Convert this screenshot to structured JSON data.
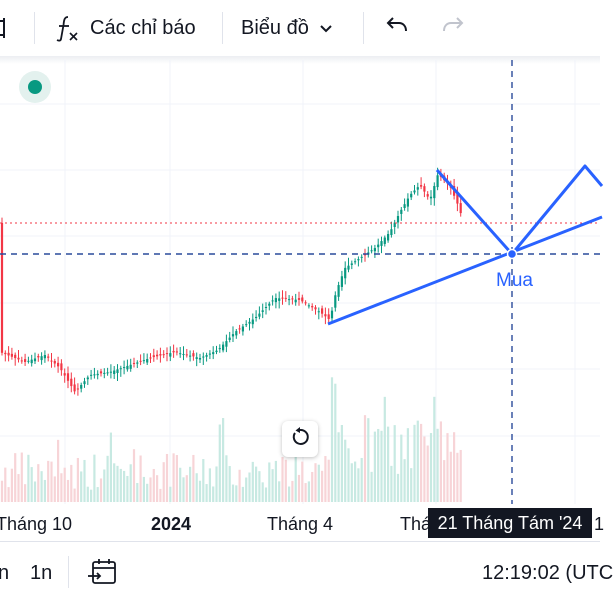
{
  "toolbar": {
    "indicators_label": "Các chỉ báo",
    "chart_type_label": "Biểu đồ"
  },
  "xaxis": {
    "labels": [
      "Tháng 10",
      "2024",
      "Tháng 4",
      "Thá"
    ],
    "crosshair_date": "21 Tháng Tám '24",
    "trailing": "1"
  },
  "annotation": {
    "text": "Mua"
  },
  "bottombar": {
    "range_partial": "n",
    "range_1n": "1n",
    "time": "12:19:02 (UTC"
  },
  "colors": {
    "up": "#089981",
    "down": "#f23645",
    "drawing": "#2962ff",
    "crosshair": "#2a4b9b",
    "status": "#089981"
  }
}
